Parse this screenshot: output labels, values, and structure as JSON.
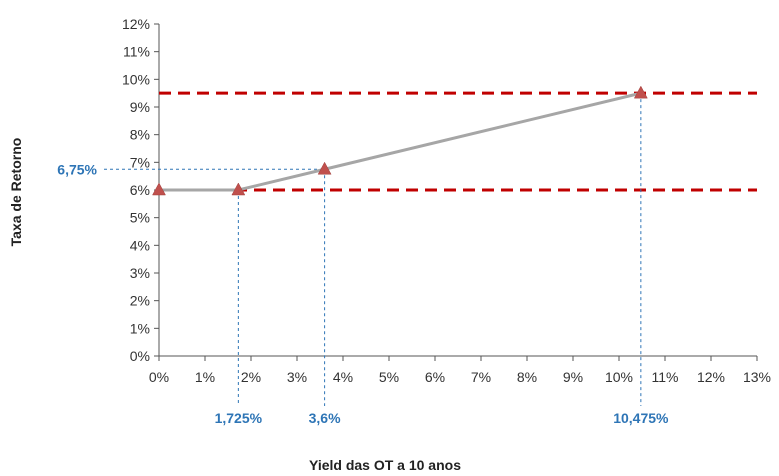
{
  "chart_data": {
    "type": "line",
    "title": "",
    "xlabel": "Yield das OT a 10 anos",
    "ylabel": "Taxa de Retorno",
    "xlim": [
      0,
      13
    ],
    "ylim": [
      0,
      12
    ],
    "x_ticks": [
      "0%",
      "1%",
      "2%",
      "3%",
      "4%",
      "5%",
      "6%",
      "7%",
      "8%",
      "9%",
      "10%",
      "11%",
      "12%",
      "13%"
    ],
    "y_ticks": [
      "0%",
      "1%",
      "2%",
      "3%",
      "4%",
      "5%",
      "6%",
      "7%",
      "8%",
      "9%",
      "10%",
      "11%",
      "12%"
    ],
    "grid": false,
    "series": [
      {
        "points": [
          {
            "x": 0,
            "y": 6
          },
          {
            "x": 1.725,
            "y": 6
          },
          {
            "x": 3.6,
            "y": 6.75
          },
          {
            "x": 10.475,
            "y": 9.5
          }
        ]
      }
    ],
    "reference_lines": [
      {
        "y": 9.5,
        "style": "dashed"
      },
      {
        "y": 6,
        "style": "dashed"
      }
    ],
    "callouts": {
      "x": [
        {
          "x": 1.725,
          "y": 6,
          "label": "1,725%"
        },
        {
          "x": 3.6,
          "y": 6.75,
          "label": "3,6%"
        },
        {
          "x": 10.475,
          "y": 9.5,
          "label": "10,475%"
        }
      ],
      "y": [
        {
          "x": 3.6,
          "y": 6.75,
          "label": "6,75%"
        }
      ]
    },
    "colors": {
      "line": "#a6a6a6",
      "marker": "#c0504d",
      "reference": "#c00000",
      "callout": "#2e75b6",
      "axis": "#555555"
    }
  }
}
